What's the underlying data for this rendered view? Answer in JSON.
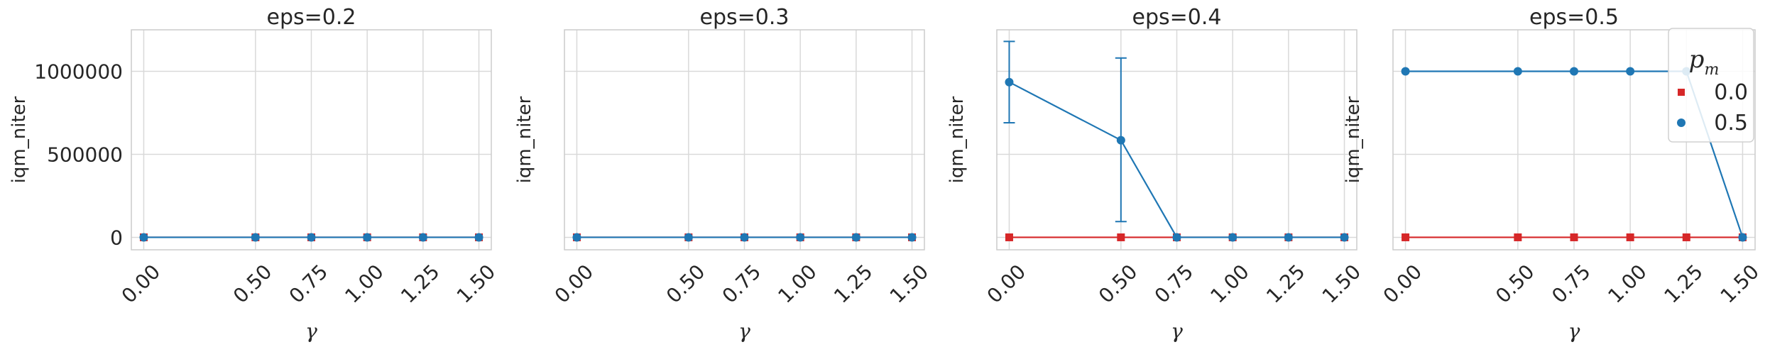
{
  "chart_data": [
    {
      "type": "line",
      "title": "eps=0.2",
      "xlabel": "γ",
      "ylabel": "iqm_niter",
      "x": [
        0.0,
        0.5,
        0.75,
        1.0,
        1.25,
        1.5
      ],
      "xtick_labels": [
        "0.00",
        "0.50",
        "0.75",
        "1.00",
        "1.25",
        "1.50"
      ],
      "ylim": [
        -75000,
        1250000
      ],
      "ytick_values": [
        0,
        500000,
        1000000
      ],
      "ytick_labels": [
        "0",
        "500000",
        "1000000"
      ],
      "grid": true,
      "series": [
        {
          "p_m": "0.0",
          "marker": "square",
          "color": "#d62728",
          "values": [
            0,
            0,
            0,
            0,
            0,
            0
          ]
        },
        {
          "p_m": "0.5",
          "marker": "circle",
          "color": "#1f77b4",
          "values": [
            0,
            0,
            0,
            0,
            0,
            0
          ]
        }
      ]
    },
    {
      "type": "line",
      "title": "eps=0.3",
      "xlabel": "γ",
      "ylabel": "iqm_niter",
      "x": [
        0.0,
        0.5,
        0.75,
        1.0,
        1.25,
        1.5
      ],
      "xtick_labels": [
        "0.00",
        "0.50",
        "0.75",
        "1.00",
        "1.25",
        "1.50"
      ],
      "ylim": [
        -75000,
        1250000
      ],
      "ytick_values": [
        0,
        500000,
        1000000
      ],
      "ytick_labels": [],
      "grid": true,
      "series": [
        {
          "p_m": "0.0",
          "marker": "square",
          "color": "#d62728",
          "values": [
            0,
            0,
            0,
            0,
            0,
            0
          ]
        },
        {
          "p_m": "0.5",
          "marker": "circle",
          "color": "#1f77b4",
          "values": [
            0,
            0,
            0,
            0,
            0,
            0
          ]
        }
      ]
    },
    {
      "type": "line",
      "title": "eps=0.4",
      "xlabel": "γ",
      "ylabel": "iqm_niter",
      "x": [
        0.0,
        0.5,
        0.75,
        1.0,
        1.25,
        1.5
      ],
      "xtick_labels": [
        "0.00",
        "0.50",
        "0.75",
        "1.00",
        "1.25",
        "1.50"
      ],
      "ylim": [
        -75000,
        1250000
      ],
      "ytick_values": [
        0,
        500000,
        1000000
      ],
      "ytick_labels": [],
      "grid": true,
      "series": [
        {
          "p_m": "0.0",
          "marker": "square",
          "color": "#d62728",
          "values": [
            0,
            0,
            0,
            0,
            0,
            0
          ]
        },
        {
          "p_m": "0.5",
          "marker": "circle",
          "color": "#1f77b4",
          "values": [
            935000,
            585000,
            0,
            0,
            0,
            0
          ],
          "error_low": [
            690000,
            95000,
            null,
            null,
            null,
            null
          ],
          "error_high": [
            1180000,
            1080000,
            null,
            null,
            null,
            null
          ]
        }
      ]
    },
    {
      "type": "line",
      "title": "eps=0.5",
      "xlabel": "γ",
      "ylabel": "iqm_niter",
      "x": [
        0.0,
        0.5,
        0.75,
        1.0,
        1.25,
        1.5
      ],
      "xtick_labels": [
        "0.00",
        "0.50",
        "0.75",
        "1.00",
        "1.25",
        "1.50"
      ],
      "ylim": [
        -75000,
        1250000
      ],
      "ytick_values": [
        0,
        500000,
        1000000
      ],
      "ytick_labels": [],
      "grid": true,
      "series": [
        {
          "p_m": "0.0",
          "marker": "square",
          "color": "#d62728",
          "values": [
            0,
            0,
            0,
            0,
            0,
            0
          ]
        },
        {
          "p_m": "0.5",
          "marker": "circle",
          "color": "#1f77b4",
          "values": [
            1000000,
            1000000,
            1000000,
            1000000,
            1000000,
            0
          ]
        }
      ]
    }
  ],
  "legend": {
    "title_base": "p",
    "title_sub": "m",
    "placement": "top-right of last panel",
    "entries": [
      {
        "label": "0.0",
        "color": "#d62728",
        "marker": "square"
      },
      {
        "label": "0.5",
        "color": "#1f77b4",
        "marker": "circle"
      }
    ]
  }
}
